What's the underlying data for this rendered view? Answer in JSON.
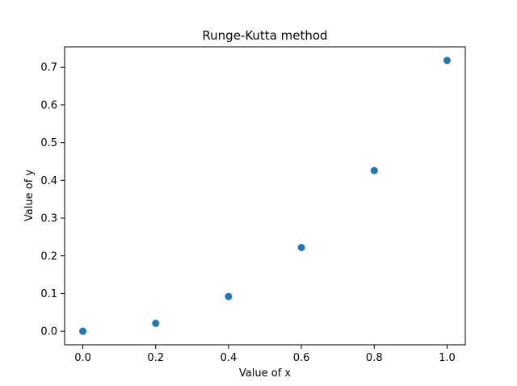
{
  "chart_data": {
    "type": "scatter",
    "title": "Runge-Kutta method",
    "xlabel": "Value of x",
    "ylabel": "Value of y",
    "x": [
      0.0,
      0.2,
      0.4,
      0.6,
      0.8,
      1.0
    ],
    "y": [
      0.0,
      0.021,
      0.092,
      0.222,
      0.426,
      0.718
    ],
    "xlim": [
      -0.05,
      1.05
    ],
    "ylim": [
      -0.036,
      0.754
    ],
    "xticks": [
      0.0,
      0.2,
      0.4,
      0.6,
      0.8,
      1.0
    ],
    "xtick_labels": [
      "0.0",
      "0.2",
      "0.4",
      "0.6",
      "0.8",
      "1.0"
    ],
    "yticks": [
      0.0,
      0.1,
      0.2,
      0.3,
      0.4,
      0.5,
      0.6,
      0.7
    ],
    "ytick_labels": [
      "0.0",
      "0.1",
      "0.2",
      "0.3",
      "0.4",
      "0.5",
      "0.6",
      "0.7"
    ],
    "grid": false,
    "marker_color": "#1f77b4"
  }
}
